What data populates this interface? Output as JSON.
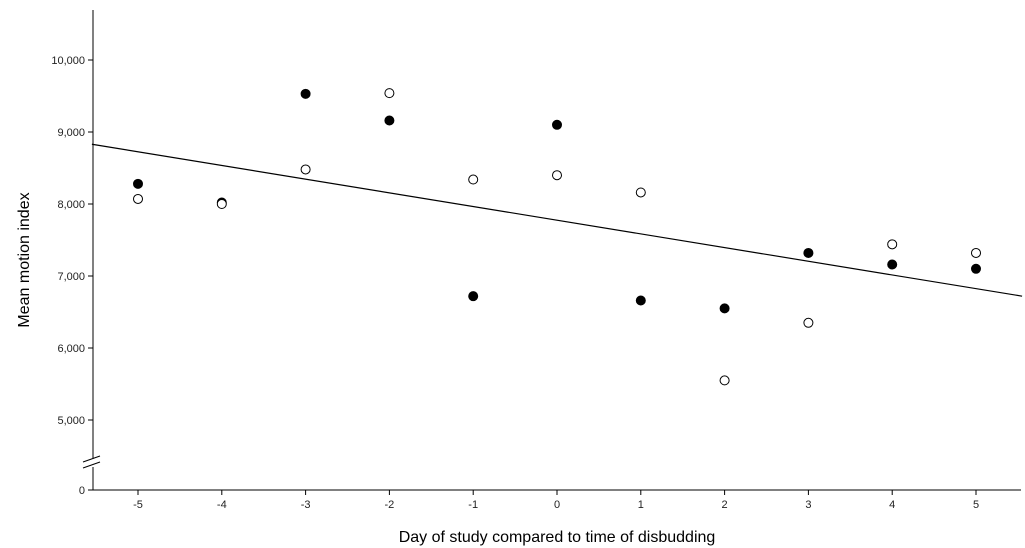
{
  "chart_data": {
    "type": "scatter",
    "title": "",
    "xlabel": "Day of study compared to time of disbudding",
    "ylabel": "Mean motion index",
    "x_ticks": [
      "-5",
      "-4",
      "-3",
      "-2",
      "-1",
      "0",
      "1",
      "2",
      "3",
      "4",
      "5"
    ],
    "y_ticks": [
      "0",
      "5,000",
      "6,000",
      "7,000",
      "8,000",
      "9,000",
      "10,000"
    ],
    "xlim": [
      -5.55,
      5.55
    ],
    "ylim": [
      4500,
      10700
    ],
    "axis_break": true,
    "grid": false,
    "legend": "none",
    "series": [
      {
        "marker": "filled-circle",
        "color": "#000000",
        "points": [
          {
            "x": -5,
            "y": 8280
          },
          {
            "x": -4,
            "y": 8020
          },
          {
            "x": -3,
            "y": 9530
          },
          {
            "x": -2,
            "y": 9160
          },
          {
            "x": -1,
            "y": 6720
          },
          {
            "x": 0,
            "y": 9100
          },
          {
            "x": 1,
            "y": 6660
          },
          {
            "x": 2,
            "y": 6550
          },
          {
            "x": 3,
            "y": 7320
          },
          {
            "x": 4,
            "y": 7160
          },
          {
            "x": 5,
            "y": 7100
          }
        ]
      },
      {
        "marker": "open-circle",
        "color": "#000000",
        "points": [
          {
            "x": -5,
            "y": 8070
          },
          {
            "x": -4,
            "y": 8000
          },
          {
            "x": -3,
            "y": 8480
          },
          {
            "x": -2,
            "y": 9540
          },
          {
            "x": -1,
            "y": 8340
          },
          {
            "x": 0,
            "y": 8400
          },
          {
            "x": 1,
            "y": 8160
          },
          {
            "x": 2,
            "y": 5550
          },
          {
            "x": 3,
            "y": 6350
          },
          {
            "x": 4,
            "y": 7440
          },
          {
            "x": 5,
            "y": 7320
          }
        ]
      }
    ],
    "fit_line": {
      "type": "linear",
      "color": "#000000",
      "points": [
        {
          "x": -5.55,
          "y": 8830
        },
        {
          "x": 5.55,
          "y": 6720
        }
      ]
    }
  }
}
